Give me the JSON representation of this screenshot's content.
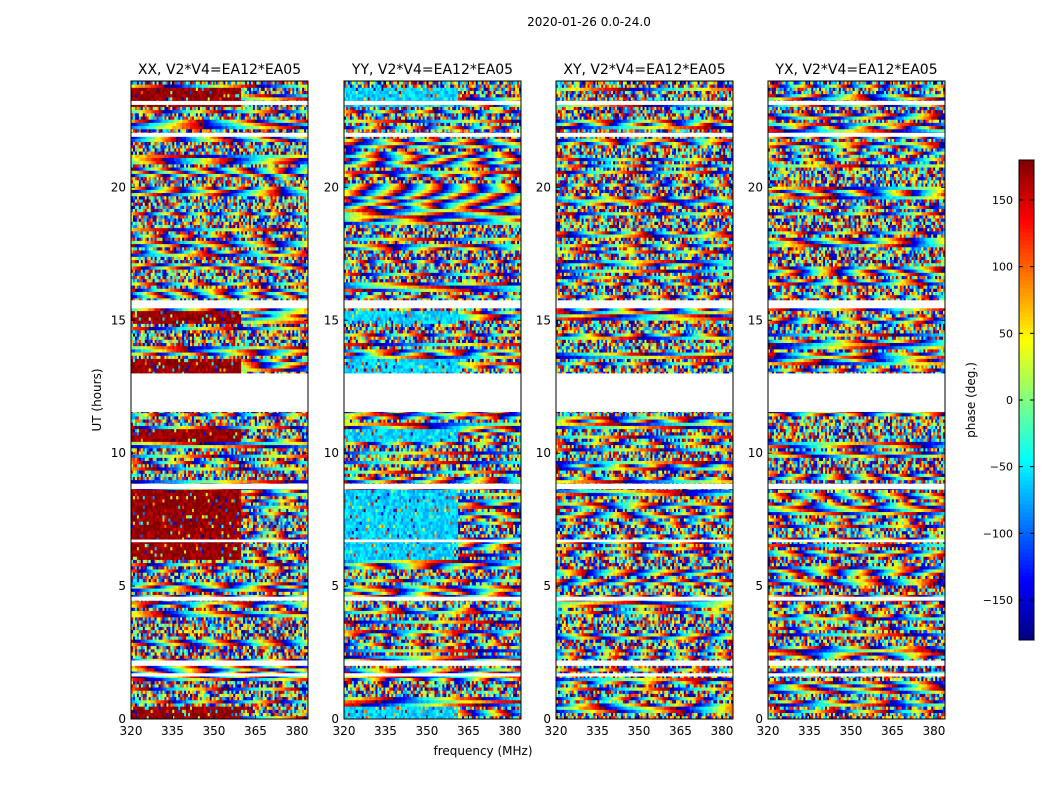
{
  "chart_data": {
    "type": "heatmap",
    "title": "2020-01-26 0.0-24.0",
    "xlabel": "frequency (MHz)",
    "ylabel": "UT (hours)",
    "xlim": [
      320,
      384
    ],
    "ylim": [
      0,
      24
    ],
    "xticks": [
      320,
      335,
      350,
      365,
      380
    ],
    "yticks": [
      0,
      5,
      10,
      15,
      20
    ],
    "flagged_gaps_hours": [
      [
        1.6,
        1.72
      ],
      [
        2.0,
        2.2
      ],
      [
        4.45,
        4.6
      ],
      [
        6.65,
        6.75
      ],
      [
        8.65,
        8.85
      ],
      [
        11.55,
        13.0
      ],
      [
        15.45,
        15.75
      ],
      [
        21.9,
        22.05
      ],
      [
        23.1,
        23.25
      ]
    ],
    "panels": [
      {
        "title": "XX, V2*V4=EA12*EA05",
        "pattern": "noisy",
        "coherent_band_mhz": [
          320,
          360
        ],
        "coherent_phase_deg": 175,
        "coherent_rows_hours": [
          [
            0,
            0.5
          ],
          [
            6.0,
            8.6
          ],
          [
            10.4,
            10.9
          ],
          [
            13.0,
            13.5
          ],
          [
            14.9,
            15.3
          ],
          [
            23.0,
            23.8
          ]
        ]
      },
      {
        "title": "YY, V2*V4=EA12*EA05",
        "pattern": "noisy",
        "coherent_band_mhz": [
          320,
          361
        ],
        "coherent_phase_deg": -60,
        "coherent_rows_hours": [
          [
            0,
            0.5
          ],
          [
            6.0,
            8.6
          ],
          [
            10.4,
            10.9
          ],
          [
            13.0,
            13.5
          ],
          [
            14.9,
            15.3
          ],
          [
            23.0,
            23.8
          ]
        ]
      },
      {
        "title": "XY, V2*V4=EA12*EA05",
        "pattern": "noisy"
      },
      {
        "title": "YX, V2*V4=EA12*EA05",
        "pattern": "noisy"
      }
    ],
    "colorbar": {
      "label": "phase (deg.)",
      "range": [
        -180,
        180
      ],
      "ticks": [
        150,
        100,
        50,
        0,
        -50,
        -100,
        -150
      ],
      "tick_labels": [
        "150",
        "100",
        "50",
        "0",
        "−50",
        "−100",
        "−150"
      ],
      "colormap": "jet"
    }
  }
}
